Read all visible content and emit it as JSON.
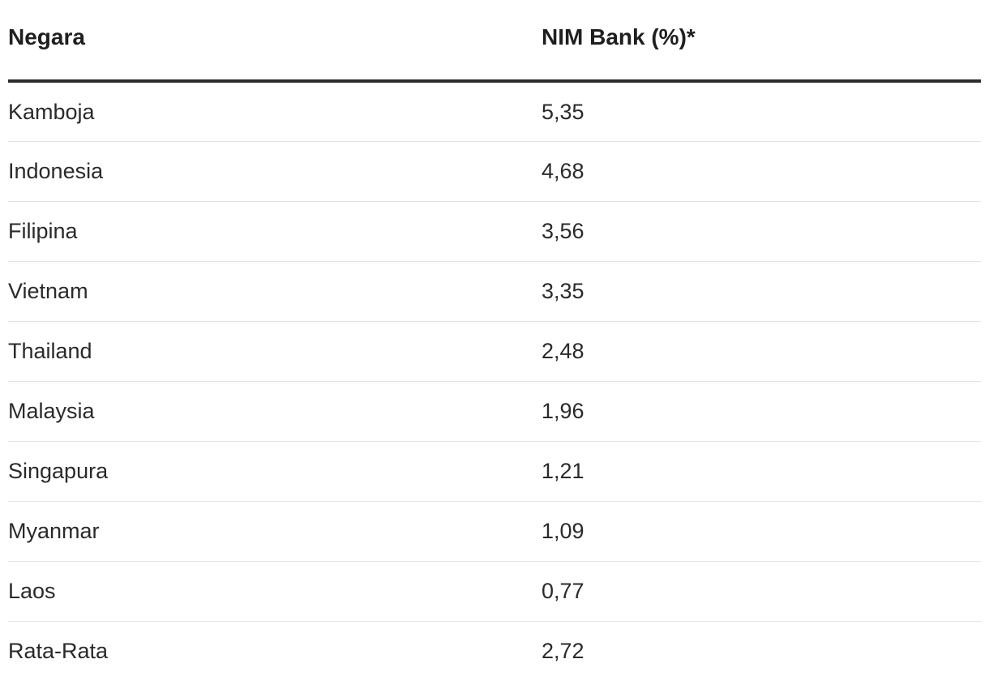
{
  "chart_data": {
    "type": "table",
    "columns": [
      "Negara",
      "NIM Bank (%)*"
    ],
    "rows": [
      {
        "country": "Kamboja",
        "value": "5,35"
      },
      {
        "country": "Indonesia",
        "value": "4,68"
      },
      {
        "country": "Filipina",
        "value": "3,56"
      },
      {
        "country": "Vietnam",
        "value": "3,35"
      },
      {
        "country": "Thailand",
        "value": "2,48"
      },
      {
        "country": "Malaysia",
        "value": "1,96"
      },
      {
        "country": "Singapura",
        "value": "1,21"
      },
      {
        "country": "Myanmar",
        "value": "1,09"
      },
      {
        "country": "Laos",
        "value": "0,77"
      },
      {
        "country": "Rata-Rata",
        "value": "2,72"
      }
    ]
  }
}
